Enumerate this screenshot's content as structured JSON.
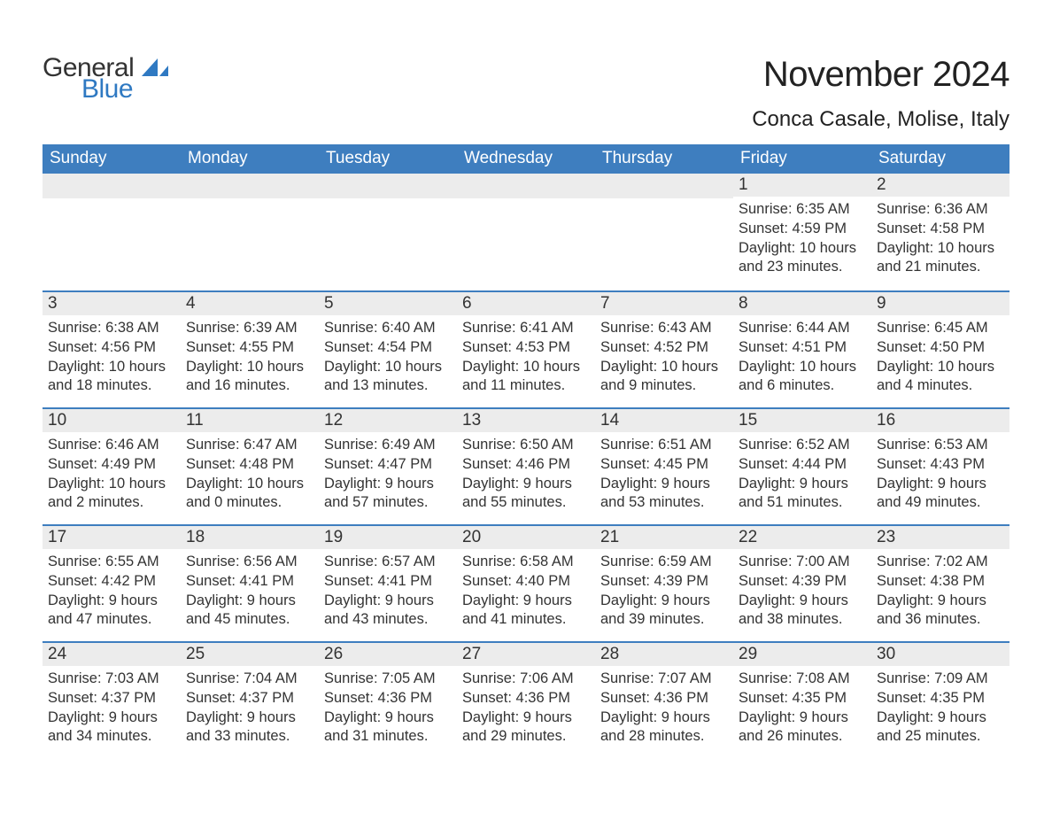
{
  "logo": {
    "text1": "General",
    "text2": "Blue",
    "icon_color": "#2f79c2"
  },
  "title": "November 2024",
  "location": "Conca Casale, Molise, Italy",
  "colors": {
    "header_bg": "#3e7ebf",
    "header_text": "#ffffff",
    "daybar_bg": "#ececec",
    "daybar_border": "#3e7ebf",
    "body_text": "#333333",
    "page_bg": "#ffffff",
    "logo_blue": "#2f79c2"
  },
  "typography": {
    "title_fontsize": 40,
    "location_fontsize": 24,
    "dayheader_fontsize": 19,
    "daynum_fontsize": 19,
    "body_fontsize": 16.5
  },
  "day_headers": [
    "Sunday",
    "Monday",
    "Tuesday",
    "Wednesday",
    "Thursday",
    "Friday",
    "Saturday"
  ],
  "weeks": [
    [
      null,
      null,
      null,
      null,
      null,
      {
        "n": "1",
        "sunrise": "6:35 AM",
        "sunset": "4:59 PM",
        "dl1": "Daylight: 10 hours",
        "dl2": "and 23 minutes."
      },
      {
        "n": "2",
        "sunrise": "6:36 AM",
        "sunset": "4:58 PM",
        "dl1": "Daylight: 10 hours",
        "dl2": "and 21 minutes."
      }
    ],
    [
      {
        "n": "3",
        "sunrise": "6:38 AM",
        "sunset": "4:56 PM",
        "dl1": "Daylight: 10 hours",
        "dl2": "and 18 minutes."
      },
      {
        "n": "4",
        "sunrise": "6:39 AM",
        "sunset": "4:55 PM",
        "dl1": "Daylight: 10 hours",
        "dl2": "and 16 minutes."
      },
      {
        "n": "5",
        "sunrise": "6:40 AM",
        "sunset": "4:54 PM",
        "dl1": "Daylight: 10 hours",
        "dl2": "and 13 minutes."
      },
      {
        "n": "6",
        "sunrise": "6:41 AM",
        "sunset": "4:53 PM",
        "dl1": "Daylight: 10 hours",
        "dl2": "and 11 minutes."
      },
      {
        "n": "7",
        "sunrise": "6:43 AM",
        "sunset": "4:52 PM",
        "dl1": "Daylight: 10 hours",
        "dl2": "and 9 minutes."
      },
      {
        "n": "8",
        "sunrise": "6:44 AM",
        "sunset": "4:51 PM",
        "dl1": "Daylight: 10 hours",
        "dl2": "and 6 minutes."
      },
      {
        "n": "9",
        "sunrise": "6:45 AM",
        "sunset": "4:50 PM",
        "dl1": "Daylight: 10 hours",
        "dl2": "and 4 minutes."
      }
    ],
    [
      {
        "n": "10",
        "sunrise": "6:46 AM",
        "sunset": "4:49 PM",
        "dl1": "Daylight: 10 hours",
        "dl2": "and 2 minutes."
      },
      {
        "n": "11",
        "sunrise": "6:47 AM",
        "sunset": "4:48 PM",
        "dl1": "Daylight: 10 hours",
        "dl2": "and 0 minutes."
      },
      {
        "n": "12",
        "sunrise": "6:49 AM",
        "sunset": "4:47 PM",
        "dl1": "Daylight: 9 hours",
        "dl2": "and 57 minutes."
      },
      {
        "n": "13",
        "sunrise": "6:50 AM",
        "sunset": "4:46 PM",
        "dl1": "Daylight: 9 hours",
        "dl2": "and 55 minutes."
      },
      {
        "n": "14",
        "sunrise": "6:51 AM",
        "sunset": "4:45 PM",
        "dl1": "Daylight: 9 hours",
        "dl2": "and 53 minutes."
      },
      {
        "n": "15",
        "sunrise": "6:52 AM",
        "sunset": "4:44 PM",
        "dl1": "Daylight: 9 hours",
        "dl2": "and 51 minutes."
      },
      {
        "n": "16",
        "sunrise": "6:53 AM",
        "sunset": "4:43 PM",
        "dl1": "Daylight: 9 hours",
        "dl2": "and 49 minutes."
      }
    ],
    [
      {
        "n": "17",
        "sunrise": "6:55 AM",
        "sunset": "4:42 PM",
        "dl1": "Daylight: 9 hours",
        "dl2": "and 47 minutes."
      },
      {
        "n": "18",
        "sunrise": "6:56 AM",
        "sunset": "4:41 PM",
        "dl1": "Daylight: 9 hours",
        "dl2": "and 45 minutes."
      },
      {
        "n": "19",
        "sunrise": "6:57 AM",
        "sunset": "4:41 PM",
        "dl1": "Daylight: 9 hours",
        "dl2": "and 43 minutes."
      },
      {
        "n": "20",
        "sunrise": "6:58 AM",
        "sunset": "4:40 PM",
        "dl1": "Daylight: 9 hours",
        "dl2": "and 41 minutes."
      },
      {
        "n": "21",
        "sunrise": "6:59 AM",
        "sunset": "4:39 PM",
        "dl1": "Daylight: 9 hours",
        "dl2": "and 39 minutes."
      },
      {
        "n": "22",
        "sunrise": "7:00 AM",
        "sunset": "4:39 PM",
        "dl1": "Daylight: 9 hours",
        "dl2": "and 38 minutes."
      },
      {
        "n": "23",
        "sunrise": "7:02 AM",
        "sunset": "4:38 PM",
        "dl1": "Daylight: 9 hours",
        "dl2": "and 36 minutes."
      }
    ],
    [
      {
        "n": "24",
        "sunrise": "7:03 AM",
        "sunset": "4:37 PM",
        "dl1": "Daylight: 9 hours",
        "dl2": "and 34 minutes."
      },
      {
        "n": "25",
        "sunrise": "7:04 AM",
        "sunset": "4:37 PM",
        "dl1": "Daylight: 9 hours",
        "dl2": "and 33 minutes."
      },
      {
        "n": "26",
        "sunrise": "7:05 AM",
        "sunset": "4:36 PM",
        "dl1": "Daylight: 9 hours",
        "dl2": "and 31 minutes."
      },
      {
        "n": "27",
        "sunrise": "7:06 AM",
        "sunset": "4:36 PM",
        "dl1": "Daylight: 9 hours",
        "dl2": "and 29 minutes."
      },
      {
        "n": "28",
        "sunrise": "7:07 AM",
        "sunset": "4:36 PM",
        "dl1": "Daylight: 9 hours",
        "dl2": "and 28 minutes."
      },
      {
        "n": "29",
        "sunrise": "7:08 AM",
        "sunset": "4:35 PM",
        "dl1": "Daylight: 9 hours",
        "dl2": "and 26 minutes."
      },
      {
        "n": "30",
        "sunrise": "7:09 AM",
        "sunset": "4:35 PM",
        "dl1": "Daylight: 9 hours",
        "dl2": "and 25 minutes."
      }
    ]
  ]
}
